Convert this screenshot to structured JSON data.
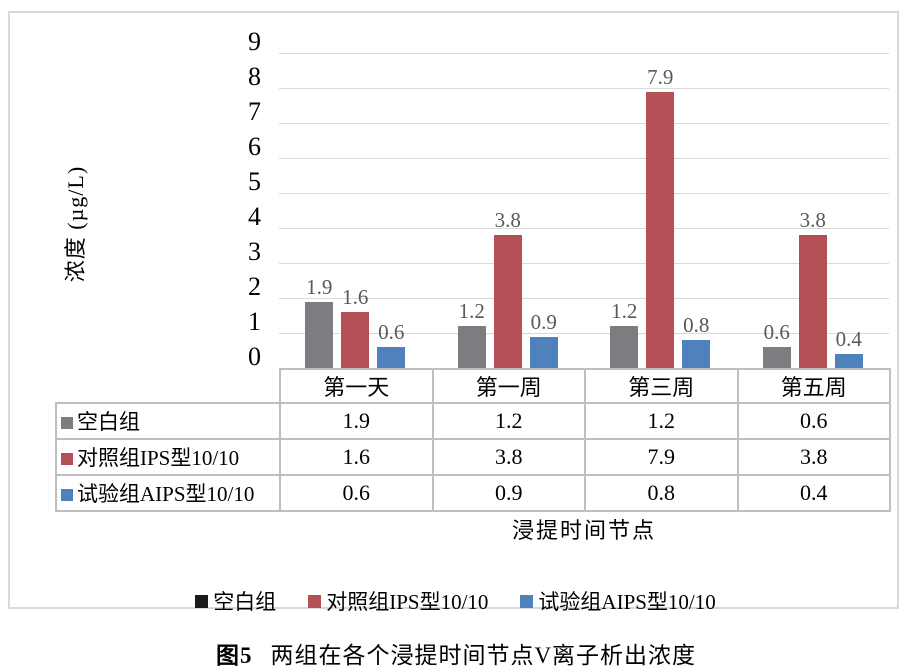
{
  "chart_data": {
    "type": "bar",
    "title": "",
    "categories": [
      "第一天",
      "第一周",
      "第三周",
      "第五周"
    ],
    "series": [
      {
        "name": "空白组",
        "color": "#7B7D80",
        "legend_color": "#1A1A1A",
        "values": [
          1.9,
          1.2,
          1.2,
          0.6
        ]
      },
      {
        "name": "对照组IPS型10/10",
        "color": "#B35156",
        "legend_color": "#B35156",
        "values": [
          1.6,
          3.8,
          7.9,
          3.8
        ]
      },
      {
        "name": "试验组AIPS型10/10",
        "color": "#4F81BD",
        "legend_color": "#4F81BD",
        "values": [
          0.6,
          0.9,
          0.8,
          0.4
        ]
      }
    ],
    "ylabel": "浓度 (µg/L)",
    "xlabel": "浸提时间节点",
    "ylim": [
      0,
      9
    ],
    "ytick_step": 1,
    "grid": true,
    "legend_position": "bottom",
    "data_table_shown": true
  },
  "colors": {
    "gridline": "#D9D9D9",
    "frame_border": "#D9D9D9",
    "table_border": "#BFBFBF",
    "data_label_text": "#595959",
    "axis_text": "#000000"
  },
  "caption": {
    "label": "图5",
    "text": "两组在各个浸提时间节点V离子析出浓度"
  }
}
